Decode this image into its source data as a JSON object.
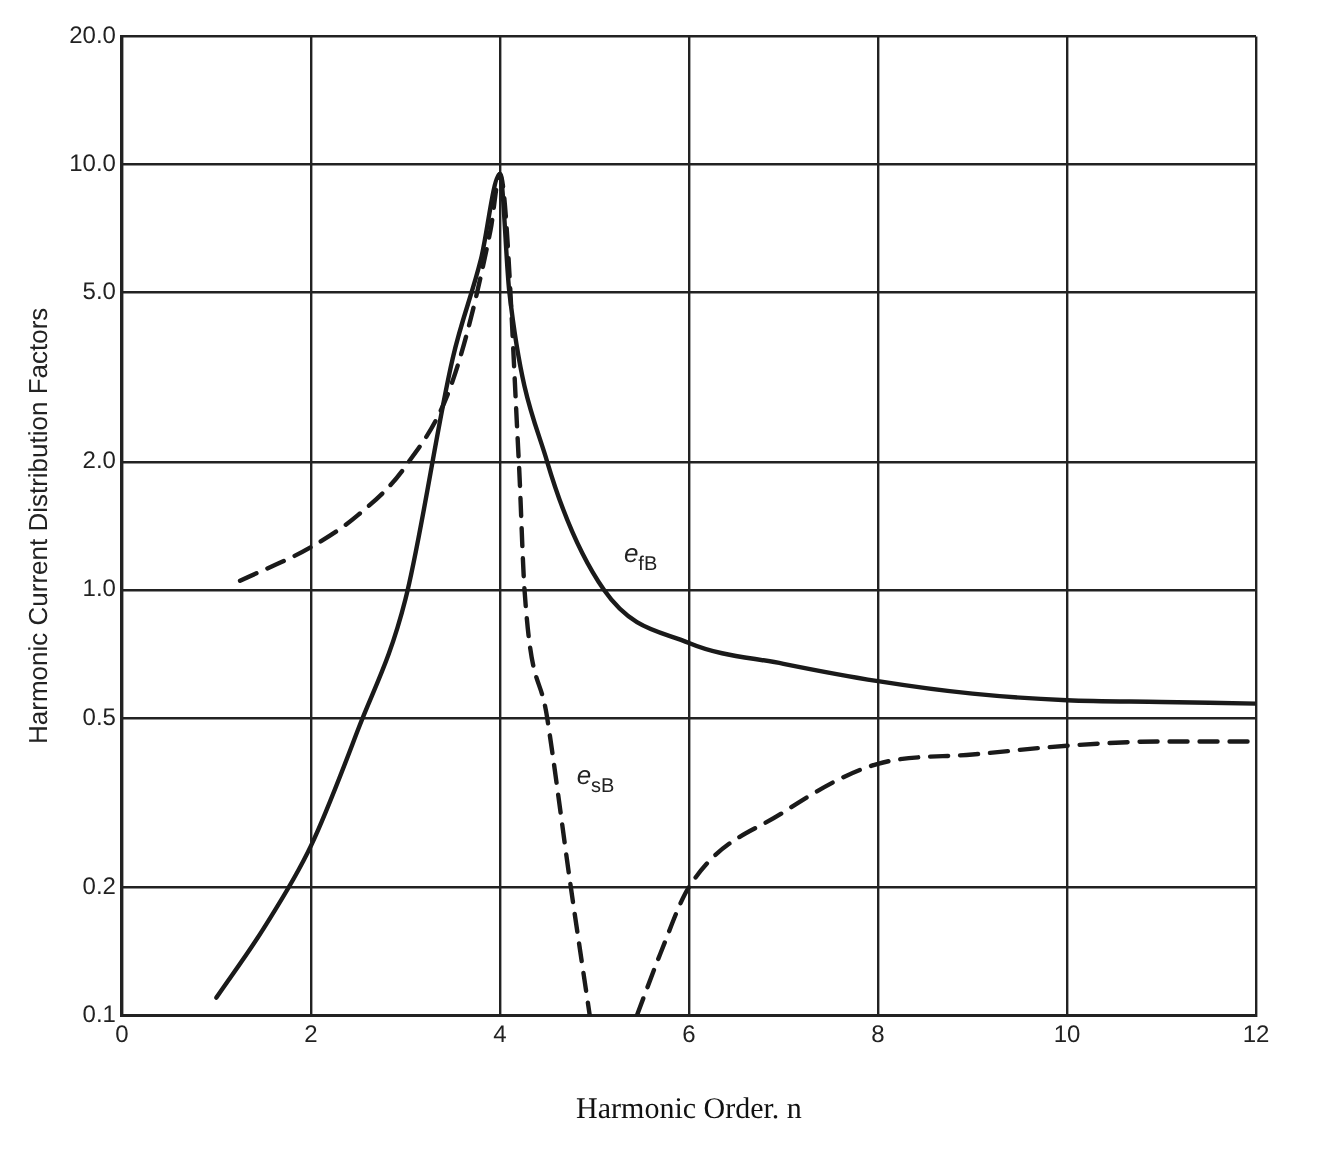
{
  "chart_data": {
    "type": "line",
    "xlabel": "Harmonic Order. n",
    "ylabel": "Harmonic Current Distribution Factors",
    "log": "y",
    "grid": true,
    "legend": false,
    "marker": "none",
    "xlim": [
      0,
      12
    ],
    "xticks": [
      0,
      2,
      4,
      6,
      8,
      10,
      12
    ],
    "ylim": [
      0.1,
      20
    ],
    "yticks": [
      0.1,
      0.2,
      0.5,
      {
        "value": 1,
        "label": "1.0"
      },
      {
        "value": 2,
        "label": "2.0"
      },
      {
        "value": 5,
        "label": "5.0"
      },
      {
        "value": 10,
        "label": "10.0"
      },
      {
        "value": 20,
        "label": "20.0"
      }
    ],
    "series": [
      {
        "color": "#1a1a1a",
        "line_style": "solid",
        "x": [
          1,
          1.5,
          2,
          2.5,
          3,
          3.5,
          3.8,
          4,
          4.1,
          4.5,
          5.1,
          6,
          7,
          8,
          9,
          10,
          11,
          12
        ],
        "values": [
          0.11,
          0.16,
          0.25,
          0.47,
          0.95,
          3.5,
          6,
          9.5,
          5,
          2,
          1,
          0.75,
          0.67,
          0.61,
          0.57,
          0.55,
          0.545,
          0.54
        ]
      },
      {
        "color": "#1a1a1a",
        "line_style": "dashed",
        "x": [
          1.25,
          2,
          2.5,
          3,
          3.5,
          3.9,
          4,
          4.2,
          4.26,
          4.5,
          4.75,
          4.95,
          5.2,
          5.45,
          5.7,
          6,
          7,
          8,
          9,
          10,
          11,
          12
        ],
        "values": [
          1.05,
          1.26,
          1.5,
          1.95,
          3.1,
          7,
          9.5,
          2,
          1,
          0.5,
          0.2,
          0.1,
          null,
          0.1,
          0.14,
          0.2,
          0.3,
          0.39,
          0.41,
          0.43,
          0.44,
          0.44
        ]
      }
    ],
    "annotations": [
      {
        "text": "e$_{fB}$",
        "x": 5.1,
        "y": 1
      },
      {
        "text": "e$_{sB}$",
        "x": 4.6,
        "y": 0.3
      }
    ]
  }
}
